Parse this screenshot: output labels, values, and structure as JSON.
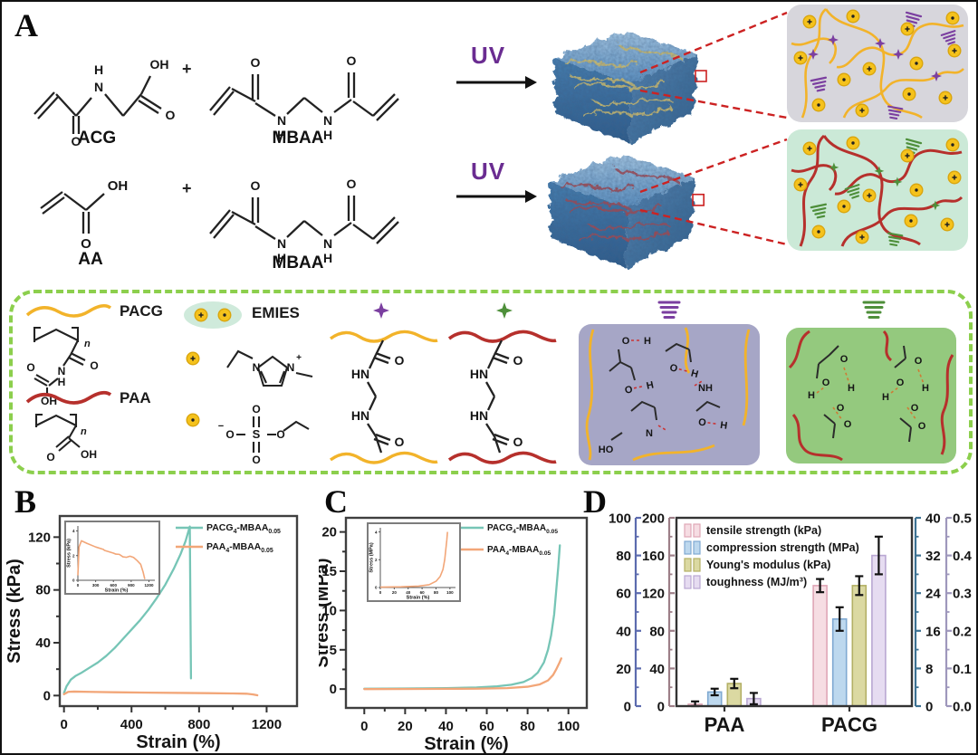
{
  "figure": {
    "panel_labels": {
      "a": "A",
      "b": "B",
      "c": "C",
      "d": "D"
    },
    "uv": "UV",
    "plus": "+",
    "names": {
      "acg": "ACG",
      "mbaa1": "MBAA",
      "aa": "AA",
      "mbaa2": "MBAA"
    },
    "legendbox": {
      "pacg": "PACG",
      "paa": "PAA",
      "emies": "EMIES"
    },
    "atoms": {
      "O": "O",
      "OH": "OH",
      "HO": "HO",
      "H": "H",
      "N": "N",
      "HN": "HN",
      "NH": "NH",
      "S": "S",
      "n": "n",
      "plus": "+",
      "minus": "−"
    },
    "colors": {
      "uv_purple": "#6a2c91",
      "pacg_chain": "#f2b32a",
      "paa_chain": "#b6302c",
      "teal_curve": "#76c5b6",
      "orange_curve": "#f2a678",
      "legend_dash_green": "#8ccf4d",
      "ion_yellow": "#f5c21c",
      "crosslink_purple": "#7b3fa0",
      "crosslink_green": "#4e8f3a",
      "inset1_bg": "#d7d6dc",
      "inset2_bg": "#cbe9d7",
      "hbond_purple_bg": "#a6a6c6",
      "hbond_green_bg": "#94c97e"
    }
  },
  "chart_data": [
    {
      "id": "B",
      "type": "line",
      "xlabel": "Strain (%)",
      "ylabel": "Stress (kPa)",
      "xlim": [
        -25,
        1380
      ],
      "ylim": [
        -8,
        136
      ],
      "xticks": [
        0,
        400,
        800,
        1200
      ],
      "yticks": [
        0,
        40,
        80,
        120
      ],
      "grid": false,
      "legend_position": "top-right",
      "series": [
        {
          "name": "PACG4-MBAA0.05",
          "parts": [
            {
              "t": "PACG"
            },
            {
              "t": "4",
              "sub": true
            },
            {
              "t": "-MBAA"
            },
            {
              "t": "0.05",
              "sub": true
            }
          ],
          "color": "#76c5b6",
          "points": [
            [
              0,
              2
            ],
            [
              15,
              7
            ],
            [
              40,
              12
            ],
            [
              70,
              15
            ],
            [
              100,
              17
            ],
            [
              150,
              21
            ],
            [
              200,
              25
            ],
            [
              250,
              30
            ],
            [
              300,
              36
            ],
            [
              350,
              43
            ],
            [
              400,
              50
            ],
            [
              450,
              57
            ],
            [
              500,
              65
            ],
            [
              550,
              74
            ],
            [
              600,
              84
            ],
            [
              650,
              96
            ],
            [
              690,
              107
            ],
            [
              720,
              117
            ],
            [
              745,
              128
            ],
            [
              752,
              13
            ]
          ]
        },
        {
          "name": "PAA4-MBAA0.05",
          "parts": [
            {
              "t": "PAA"
            },
            {
              "t": "4",
              "sub": true
            },
            {
              "t": "-MBAA"
            },
            {
              "t": "0.05",
              "sub": true
            }
          ],
          "color": "#f2a678",
          "points": [
            [
              0,
              1
            ],
            [
              25,
              2.8
            ],
            [
              60,
              3
            ],
            [
              150,
              2.8
            ],
            [
              300,
              2.5
            ],
            [
              500,
              2.2
            ],
            [
              700,
              2
            ],
            [
              850,
              1.8
            ],
            [
              1000,
              1.6
            ],
            [
              1080,
              1.4
            ],
            [
              1120,
              0.8
            ],
            [
              1145,
              0.2
            ]
          ]
        }
      ],
      "inset": {
        "xlabel": "Strain (%)",
        "ylabel": "Stress (kPa)",
        "xlim": [
          0,
          1300
        ],
        "ylim": [
          0,
          4.4
        ],
        "xticks": [
          0,
          300,
          600,
          900,
          1200
        ],
        "yticks": [
          0,
          2,
          4
        ],
        "color": "#f2a678",
        "points": [
          [
            0,
            0.4
          ],
          [
            20,
            2.7
          ],
          [
            60,
            3.2
          ],
          [
            150,
            3.0
          ],
          [
            300,
            2.7
          ],
          [
            430,
            2.5
          ],
          [
            450,
            2.42
          ],
          [
            600,
            2.2
          ],
          [
            640,
            2.12
          ],
          [
            700,
            2.1
          ],
          [
            760,
            1.9
          ],
          [
            820,
            1.86
          ],
          [
            880,
            1.95
          ],
          [
            940,
            1.85
          ],
          [
            1000,
            1.6
          ],
          [
            1060,
            1.3
          ],
          [
            1100,
            0.7
          ],
          [
            1130,
            0.1
          ]
        ]
      }
    },
    {
      "id": "C",
      "type": "line",
      "xlabel": "Strain (%)",
      "ylabel": "Stress (MPa)",
      "xlim": [
        -9,
        109
      ],
      "ylim": [
        -2.4,
        21.8
      ],
      "xticks": [
        0,
        20,
        40,
        60,
        80,
        100
      ],
      "yticks": [
        0,
        5,
        10,
        15,
        20
      ],
      "grid": false,
      "legend_position": "top-right",
      "series": [
        {
          "name": "PACG4-MBAA0.05",
          "parts": [
            {
              "t": "PACG"
            },
            {
              "t": "4",
              "sub": true
            },
            {
              "t": "-MBAA"
            },
            {
              "t": "0.05",
              "sub": true
            }
          ],
          "color": "#76c5b6",
          "points": [
            [
              0,
              0.05
            ],
            [
              20,
              0.08
            ],
            [
              40,
              0.12
            ],
            [
              55,
              0.2
            ],
            [
              65,
              0.35
            ],
            [
              72,
              0.55
            ],
            [
              78,
              0.9
            ],
            [
              82,
              1.4
            ],
            [
              85,
              2.1
            ],
            [
              88,
              3.4
            ],
            [
              90,
              5
            ],
            [
              91.5,
              6.8
            ],
            [
              93,
              9.5
            ],
            [
              94,
              12.5
            ],
            [
              95,
              15.5
            ],
            [
              95.8,
              18.3
            ]
          ]
        },
        {
          "name": "PAA4-MBAA0.05",
          "parts": [
            {
              "t": "PAA"
            },
            {
              "t": "4",
              "sub": true
            },
            {
              "t": "-MBAA"
            },
            {
              "t": "0.05",
              "sub": true
            }
          ],
          "color": "#f2a678",
          "points": [
            [
              0,
              0
            ],
            [
              30,
              0.02
            ],
            [
              55,
              0.05
            ],
            [
              70,
              0.12
            ],
            [
              80,
              0.3
            ],
            [
              86,
              0.6
            ],
            [
              90,
              1.1
            ],
            [
              92.5,
              1.8
            ],
            [
              94,
              2.5
            ],
            [
              95.5,
              3.3
            ],
            [
              96.5,
              3.9
            ]
          ]
        }
      ],
      "inset": {
        "xlabel": "Strain (%)",
        "ylabel": "Stress (MPa)",
        "xlim": [
          0,
          108
        ],
        "ylim": [
          0,
          4.3
        ],
        "xticks": [
          0,
          20,
          40,
          60,
          80,
          100
        ],
        "yticks": [
          0,
          2,
          4
        ],
        "color": "#f2a678",
        "points": [
          [
            0,
            0.03
          ],
          [
            30,
            0.05
          ],
          [
            55,
            0.1
          ],
          [
            70,
            0.2
          ],
          [
            80,
            0.45
          ],
          [
            86,
            0.8
          ],
          [
            90,
            1.3
          ],
          [
            92.5,
            2
          ],
          [
            94,
            2.7
          ],
          [
            95.5,
            3.4
          ],
          [
            96.5,
            4
          ]
        ]
      }
    },
    {
      "id": "D",
      "type": "bar",
      "categories": [
        "PAA",
        "PACG"
      ],
      "axes": [
        {
          "range": [
            0,
            100
          ],
          "ticks": [
            0,
            20,
            40,
            60,
            80,
            100
          ],
          "color": "#5c6bae"
        },
        {
          "range": [
            0,
            200
          ],
          "ticks": [
            0,
            40,
            80,
            120,
            160,
            200
          ],
          "color": "#9d7f88"
        },
        {
          "range": [
            0,
            40
          ],
          "ticks": [
            0,
            8,
            16,
            24,
            32,
            40
          ],
          "color": "#3d7293"
        },
        {
          "range": [
            0,
            0.5
          ],
          "ticks": [
            "0.0",
            "0.1",
            "0.2",
            "0.3",
            "0.4",
            "0.5"
          ],
          "color": "#9e97bc"
        }
      ],
      "series": [
        {
          "name": "tensile strength (kPa)",
          "axis": 1,
          "fill": "#f6dde3",
          "edge": "#dfa6b6",
          "values": [
            2,
            128
          ],
          "errors": [
            3,
            7
          ]
        },
        {
          "name": "compression strength (MPa)",
          "axis": 2,
          "fill": "#bdd8ee",
          "edge": "#7fa9d2",
          "values": [
            3,
            18.5
          ],
          "errors": [
            0.7,
            2.5
          ]
        },
        {
          "name": "Young's modulus (kPa)",
          "axis": 0,
          "fill": "#dbd9a2",
          "edge": "#b3b065",
          "values": [
            12,
            64
          ],
          "errors": [
            2.5,
            5
          ]
        },
        {
          "name": "toughness (MJ/m³)",
          "axis": 3,
          "fill": "#e6dcf1",
          "edge": "#b9a7d2",
          "values": [
            0.02,
            0.4
          ],
          "errors": [
            0.015,
            0.05
          ]
        }
      ],
      "legend_position": "top-left"
    }
  ]
}
